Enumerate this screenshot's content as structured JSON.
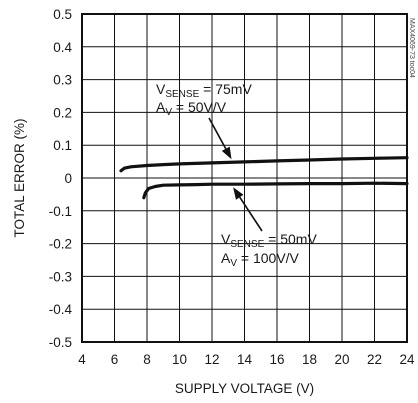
{
  "chart_data": {
    "type": "line",
    "xlabel": "SUPPLY VOLTAGE (V)",
    "ylabel": "TOTAL ERROR (%)",
    "xlim": [
      4,
      24
    ],
    "ylim": [
      -0.5,
      0.5
    ],
    "x_ticks": [
      "4",
      "6",
      "8",
      "10",
      "12",
      "14",
      "16",
      "18",
      "20",
      "22",
      "24"
    ],
    "y_ticks": [
      "0.5",
      "0.4",
      "0.3",
      "0.2",
      "0.1",
      "0",
      "-0.1",
      "-0.2",
      "-0.3",
      "-0.4",
      "-0.5"
    ],
    "grid": true,
    "series": [
      {
        "x": [
          6.4,
          6.6,
          7,
          8,
          9,
          10,
          12,
          14,
          16,
          18,
          20,
          22,
          24
        ],
        "y": [
          0.022,
          0.03,
          0.034,
          0.038,
          0.041,
          0.043,
          0.046,
          0.049,
          0.052,
          0.055,
          0.058,
          0.06,
          0.062
        ],
        "color": "#111111"
      },
      {
        "x": [
          7.8,
          7.9,
          8.1,
          8.5,
          9,
          10,
          11,
          12,
          14,
          16,
          18,
          20,
          22,
          24
        ],
        "y": [
          -0.06,
          -0.045,
          -0.032,
          -0.026,
          -0.022,
          -0.021,
          -0.02,
          -0.019,
          -0.019,
          -0.018,
          -0.017,
          -0.017,
          -0.016,
          -0.017
        ],
        "color": "#111111"
      }
    ],
    "annotations": [
      {
        "id": "upper",
        "line1_main": "V",
        "line1_sub": "SENSE",
        "line1_rest": " = 75mV",
        "line2_main": "A",
        "line2_sub": "V",
        "line2_rest": " = 50V/V",
        "arrow_to": [
          13.2,
          0.051
        ]
      },
      {
        "id": "lower",
        "line1_main": "V",
        "line1_sub": "SENSE",
        "line1_rest": " = 50mV",
        "line2_main": "A",
        "line2_sub": "V",
        "line2_rest": " = 100V/V",
        "arrow_to": [
          13.3,
          -0.022
        ]
      }
    ],
    "watermark": "MAX4069-73 toc04"
  }
}
